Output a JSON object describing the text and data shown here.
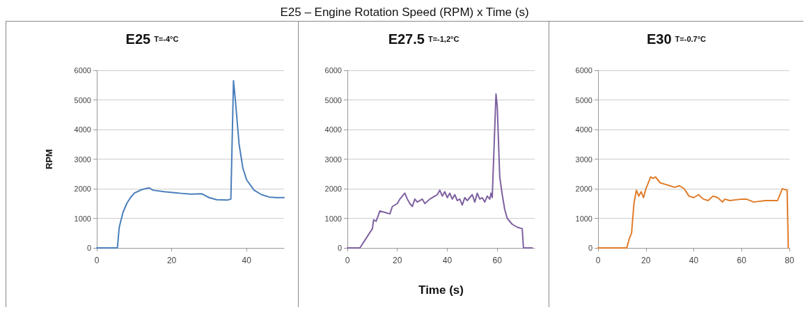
{
  "chart_data": [
    {
      "type": "line",
      "title": "E25",
      "subtitle": "T=-4°C",
      "ylabel": "RPM",
      "xlim": [
        0,
        50
      ],
      "xticks": [
        0,
        20,
        40
      ],
      "ylim": [
        0,
        6000
      ],
      "yticks": [
        0,
        1000,
        2000,
        3000,
        4000,
        5000,
        6000
      ],
      "grid": "y",
      "marker": "none",
      "line_style": "solid",
      "series": [
        {
          "color": "#4a7ebb",
          "x": [
            0,
            5.5,
            6,
            7,
            8,
            9,
            10,
            12,
            14,
            15,
            18,
            22,
            25,
            28,
            30,
            32,
            35,
            35.8,
            36.5,
            37,
            38,
            39,
            40,
            42,
            44,
            46,
            48,
            50
          ],
          "values": [
            0,
            0,
            700,
            1200,
            1500,
            1700,
            1850,
            1970,
            2030,
            1950,
            1900,
            1850,
            1820,
            1830,
            1700,
            1630,
            1620,
            1650,
            5650,
            5000,
            3500,
            2700,
            2300,
            1950,
            1800,
            1720,
            1700,
            1700
          ]
        }
      ]
    },
    {
      "type": "line",
      "title": "E27.5",
      "subtitle": "T=-1,2°C",
      "xlabel": "Time (s)",
      "annotations": [
        "E25 – Engine Rotation Speed (RPM) x Time (s)"
      ],
      "xlim": [
        0,
        75
      ],
      "xticks": [
        0,
        20,
        40,
        60
      ],
      "ylim": [
        0,
        6000
      ],
      "yticks": [
        0,
        1000,
        2000,
        3000,
        4000,
        5000,
        6000
      ],
      "grid": "y",
      "marker": "none",
      "line_style": "solid",
      "series": [
        {
          "color": "#7d60a0",
          "x": [
            0,
            5,
            10,
            10.5,
            11.5,
            13,
            15,
            17,
            18,
            20,
            21,
            22,
            23,
            24,
            25,
            26,
            27,
            28,
            30,
            31,
            33,
            35,
            36,
            37,
            38,
            39,
            40,
            41,
            42,
            43,
            44,
            45,
            46,
            47,
            48,
            50,
            51,
            52,
            53,
            54,
            55,
            56,
            57,
            57.5,
            58,
            59.5,
            60,
            61,
            62,
            63,
            64,
            66,
            68,
            70,
            70.5,
            74
          ],
          "values": [
            0,
            0,
            650,
            950,
            900,
            1250,
            1200,
            1150,
            1400,
            1500,
            1650,
            1750,
            1850,
            1650,
            1500,
            1400,
            1650,
            1550,
            1650,
            1500,
            1650,
            1750,
            1800,
            1950,
            1750,
            1900,
            1700,
            1850,
            1650,
            1800,
            1600,
            1650,
            1450,
            1700,
            1600,
            1800,
            1550,
            1850,
            1650,
            1700,
            1550,
            1750,
            1650,
            1850,
            1700,
            5200,
            4800,
            2400,
            1800,
            1300,
            1000,
            800,
            700,
            650,
            0,
            0
          ]
        }
      ]
    },
    {
      "type": "line",
      "title": "E30",
      "subtitle": "T=-0.7°C",
      "xlim": [
        0,
        80
      ],
      "xticks": [
        0,
        20,
        40,
        60,
        80
      ],
      "ylim": [
        0,
        6000
      ],
      "yticks": [
        0,
        1000,
        2000,
        3000,
        4000,
        5000,
        6000
      ],
      "grid": "y",
      "marker": "none",
      "line_style": "solid",
      "series": [
        {
          "color": "#e07b28",
          "x": [
            0,
            12,
            13,
            14,
            15,
            16,
            17,
            18,
            19,
            20,
            21,
            22,
            23,
            24,
            25,
            26,
            28,
            30,
            32,
            34,
            36,
            38,
            40,
            42,
            44,
            46,
            48,
            50,
            52,
            53,
            55,
            60,
            62,
            65,
            70,
            75,
            77,
            79,
            79.5
          ],
          "values": [
            0,
            0,
            300,
            500,
            1500,
            1950,
            1750,
            1900,
            1700,
            2000,
            2200,
            2400,
            2350,
            2400,
            2300,
            2200,
            2150,
            2100,
            2050,
            2100,
            2000,
            1750,
            1700,
            1800,
            1650,
            1600,
            1750,
            1700,
            1550,
            1650,
            1600,
            1650,
            1650,
            1550,
            1600,
            1600,
            2000,
            1950,
            0
          ]
        }
      ]
    }
  ]
}
